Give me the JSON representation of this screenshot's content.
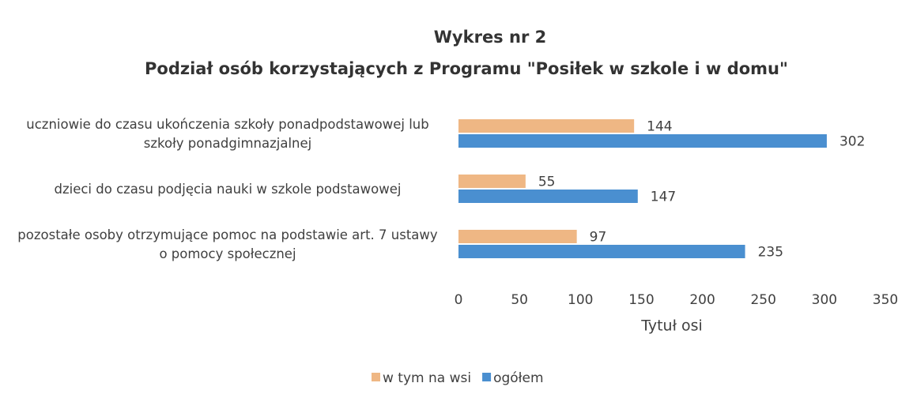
{
  "chart_data": {
    "type": "bar",
    "orientation": "horizontal",
    "title": "Wykres nr 2",
    "subtitle": "Podział osób korzystających z Programu \"Posiłek w szkole i w domu\"",
    "x_label": "Tytuł osi",
    "categories": [
      "uczniowie do czasu ukończenia szkoły ponadpodstawowej lub szkoły ponadgimnazjalnej",
      "dzieci do czasu podjęcia nauki w szkole podstawowej",
      "pozostałe osoby otrzymujące pomoc na podstawie art. 7 ustawy o pomocy społecznej"
    ],
    "series": [
      {
        "name": "w tym na wsi",
        "color": "#efb784",
        "values": [
          144,
          55,
          97
        ]
      },
      {
        "name": "ogółem",
        "color": "#4a8fd0",
        "values": [
          302,
          147,
          235
        ]
      }
    ],
    "xlim": [
      0,
      350
    ],
    "xticks": [
      0,
      50,
      100,
      150,
      200,
      250,
      300,
      350
    ],
    "grid": false,
    "legend": "bottom"
  }
}
